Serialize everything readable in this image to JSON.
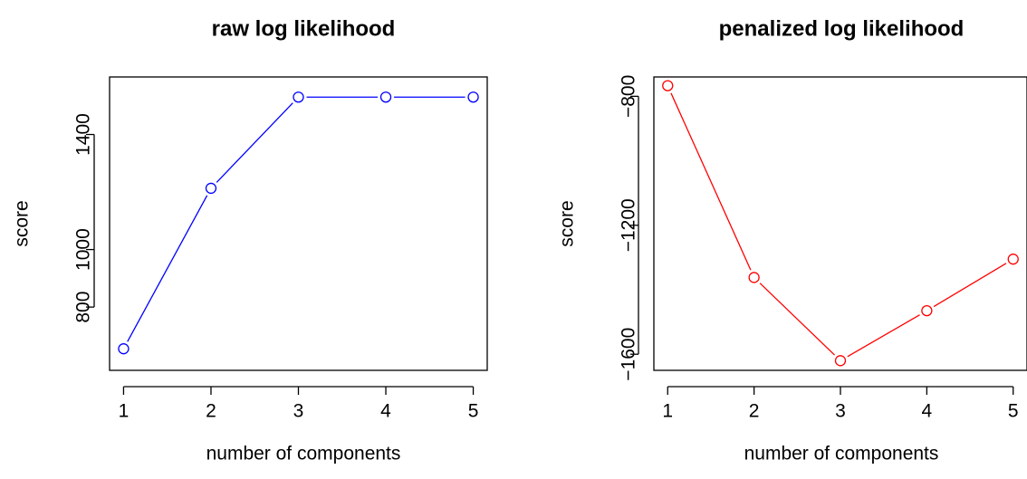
{
  "chart_data": [
    {
      "type": "line",
      "title": "raw log likelihood",
      "xlabel": "number of components",
      "ylabel": "score",
      "x": [
        1,
        2,
        3,
        4,
        5
      ],
      "x_ticks": [
        "1",
        "2",
        "3",
        "4",
        "5"
      ],
      "y_ticks": [
        800,
        1000,
        1400
      ],
      "y_tick_labels": [
        "800",
        "1000",
        "1400"
      ],
      "xlim": [
        0.84,
        5.16
      ],
      "ylim": [
        580,
        1600
      ],
      "series": [
        {
          "values": [
            655,
            1213,
            1530,
            1530,
            1530
          ],
          "color": "#0000ff",
          "marker": "open-circle"
        }
      ],
      "grid": false,
      "legend": "none"
    },
    {
      "type": "line",
      "title": "penalized log likelihood",
      "xlabel": "number of components",
      "ylabel": "score",
      "x": [
        1,
        2,
        3,
        4,
        5
      ],
      "x_ticks": [
        "1",
        "2",
        "3",
        "4",
        "5"
      ],
      "y_ticks": [
        -800,
        -1200,
        -1600
      ],
      "y_tick_labels": [
        "−800",
        "−1200",
        "−1600"
      ],
      "xlim": [
        0.84,
        5.16
      ],
      "ylim": [
        -1650,
        -740
      ],
      "series": [
        {
          "values": [
            -767,
            -1362,
            -1620,
            -1465,
            -1305
          ],
          "color": "#ff0000",
          "marker": "open-circle"
        }
      ],
      "grid": false,
      "legend": "none"
    }
  ]
}
